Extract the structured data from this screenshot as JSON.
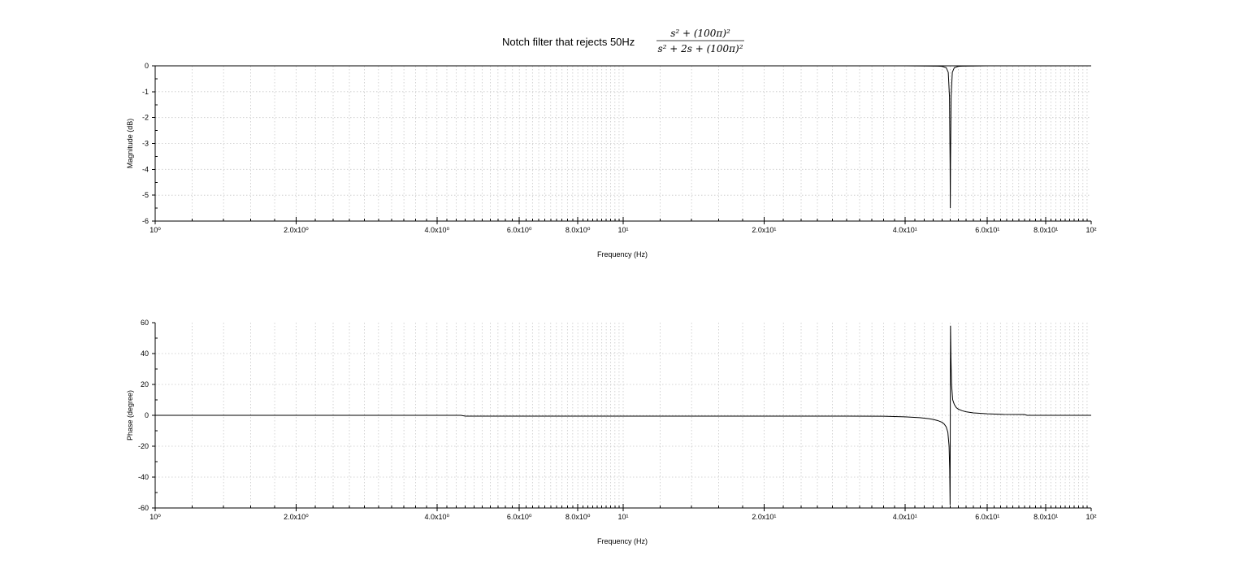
{
  "figure": {
    "title": "Notch filter that rejects 50Hz",
    "formula": {
      "numerator": "s² + (100π)²",
      "denominator": "s² + 2s + (100π)²"
    }
  },
  "chart_data": [
    {
      "type": "line",
      "name": "magnitude",
      "xlabel": "Frequency (Hz)",
      "ylabel": "Magnitude (dB)",
      "xscale": "log",
      "xlim": [
        1,
        100
      ],
      "ylim": [
        -6,
        0
      ],
      "grid": true,
      "x_tick_labels": [
        "10⁰",
        "2.0x10⁰",
        "4.0x10⁰",
        "6.0x10⁰",
        "8.0x10⁰",
        "10¹",
        "2.0x10¹",
        "4.0x10¹",
        "6.0x10¹",
        "8.0x10¹",
        "10²"
      ],
      "y_ticks": [
        0,
        -1,
        -2,
        -3,
        -4,
        -5,
        -6
      ],
      "x": [
        1,
        10,
        40,
        47,
        48,
        49,
        49.5,
        49.8,
        49.95,
        50,
        50.05,
        50.2,
        50.5,
        51,
        52,
        53,
        60,
        100
      ],
      "y": [
        0,
        0,
        0,
        -0.01,
        -0.02,
        -0.07,
        -0.25,
        -1.2,
        -3.8,
        -5.5,
        -3.8,
        -1.2,
        -0.25,
        -0.07,
        -0.02,
        -0.01,
        0,
        0
      ]
    },
    {
      "type": "line",
      "name": "phase",
      "xlabel": "Frequency (Hz)",
      "ylabel": "Phase (degree)",
      "xscale": "log",
      "xlim": [
        1,
        100
      ],
      "ylim": [
        -60,
        60
      ],
      "grid": true,
      "x_tick_labels": [
        "10⁰",
        "2.0x10⁰",
        "4.0x10⁰",
        "6.0x10⁰",
        "8.0x10⁰",
        "10¹",
        "2.0x10¹",
        "4.0x10¹",
        "6.0x10¹",
        "8.0x10¹",
        "10²"
      ],
      "y_ticks": [
        60,
        40,
        20,
        0,
        -20,
        -40,
        -60
      ],
      "x": [
        1,
        4.5,
        4.6,
        30,
        36,
        38,
        40,
        43,
        45,
        46,
        47,
        48,
        48.5,
        49,
        49.4,
        49.7,
        49.85,
        49.95,
        50,
        50.05,
        50.15,
        50.3,
        50.6,
        51,
        51.5,
        52,
        53,
        54,
        56,
        60,
        65,
        72,
        73,
        100
      ],
      "y": [
        0,
        0,
        -0.5,
        -0.5,
        -0.6,
        -0.8,
        -1,
        -1.5,
        -2.2,
        -2.7,
        -3.4,
        -4.5,
        -5.6,
        -7.5,
        -11,
        -20,
        -35,
        -58,
        0,
        58,
        38,
        20,
        10,
        7,
        5,
        4,
        3,
        2.3,
        1.6,
        1,
        0.6,
        0.5,
        0,
        0
      ]
    }
  ]
}
